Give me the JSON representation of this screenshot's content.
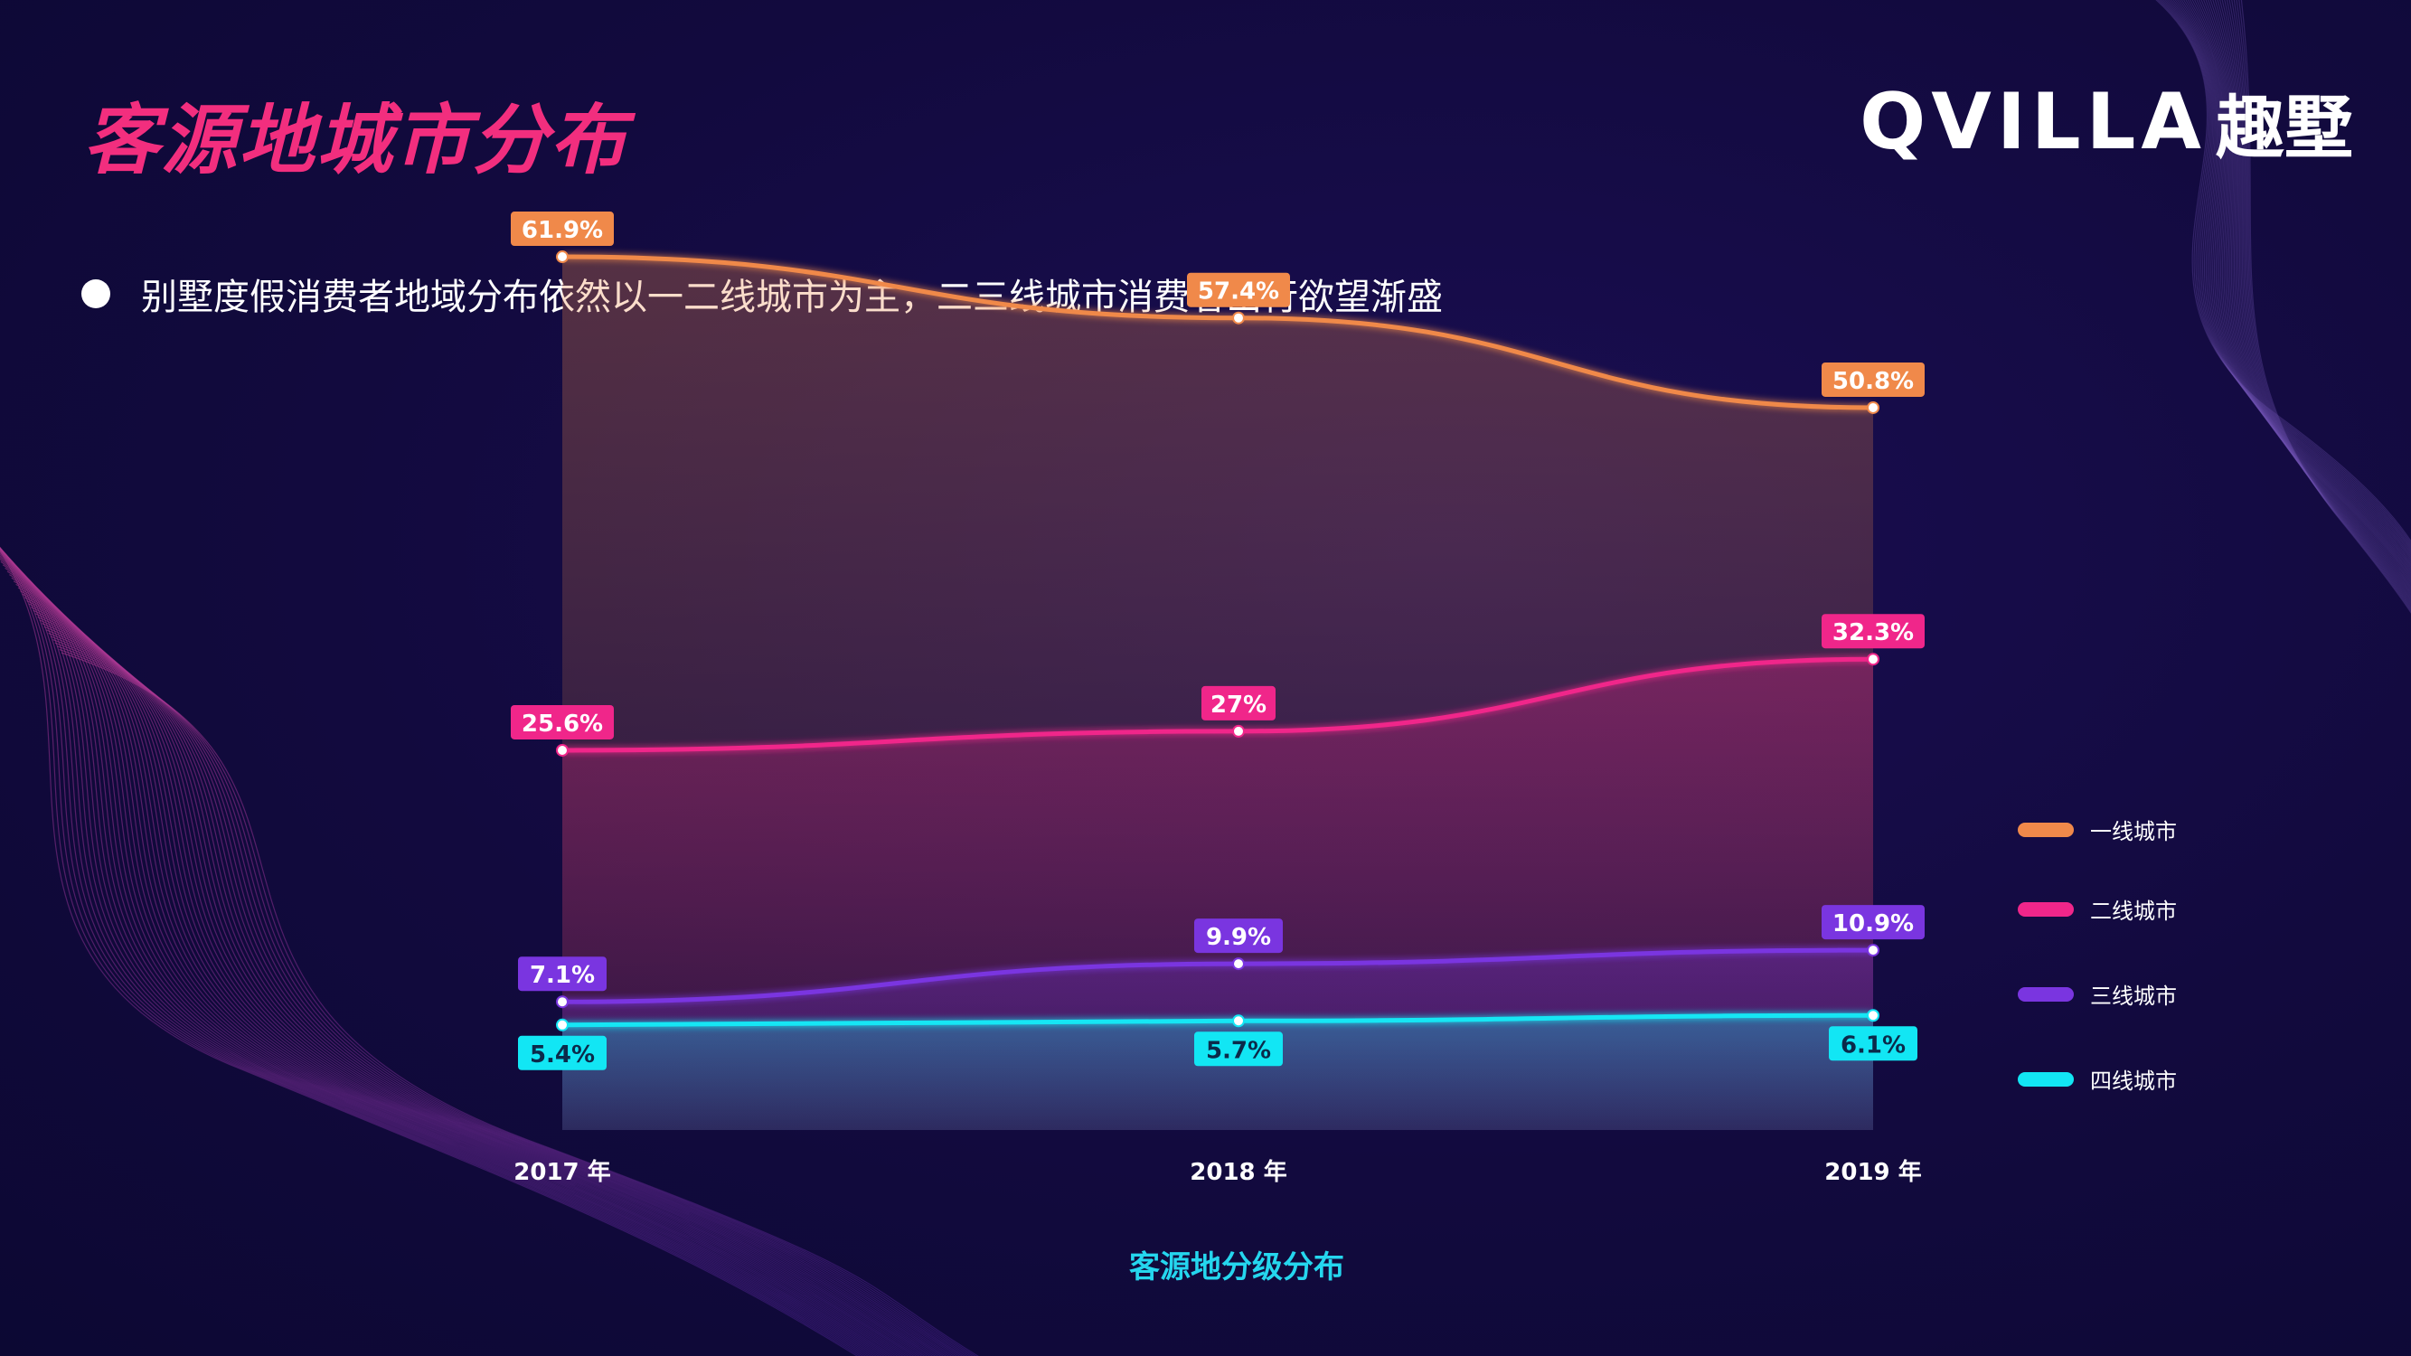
{
  "header": {
    "title": "客源地城市分布",
    "logo_en": "QVILLA",
    "logo_cn": "趣墅"
  },
  "bullet": {
    "text": "别墅度假消费者地域分布依然以一二线城市为主，二三线城市消费者出行欲望渐盛"
  },
  "colors": {
    "title": "#f22e7e",
    "tier1": "#f0894a",
    "tier2": "#f0268a",
    "tier3": "#7a35e0",
    "tier4": "#12e6f4",
    "caption": "#25d6ee"
  },
  "chart_data": {
    "type": "line",
    "title": "",
    "xlabel": "客源地分级分布",
    "ylabel": "",
    "categories": [
      "2017 年",
      "2018 年",
      "2019 年"
    ],
    "series": [
      {
        "name": "一线城市",
        "values": [
          61.9,
          57.4,
          50.8
        ],
        "labels": [
          "61.9%",
          "57.4%",
          "50.8%"
        ],
        "color": "#f0894a"
      },
      {
        "name": "二线城市",
        "values": [
          25.6,
          27,
          32.3
        ],
        "labels": [
          "25.6%",
          "27%",
          "32.3%"
        ],
        "color": "#f0268a"
      },
      {
        "name": "三线城市",
        "values": [
          7.1,
          9.9,
          10.9
        ],
        "labels": [
          "7.1%",
          "9.9%",
          "10.9%"
        ],
        "color": "#7a35e0"
      },
      {
        "name": "四线城市",
        "values": [
          5.4,
          5.7,
          6.1
        ],
        "labels": [
          "5.4%",
          "5.7%",
          "6.1%"
        ],
        "color": "#12e6f4"
      }
    ],
    "legend_position": "right",
    "grid": false,
    "area_fill": true
  }
}
